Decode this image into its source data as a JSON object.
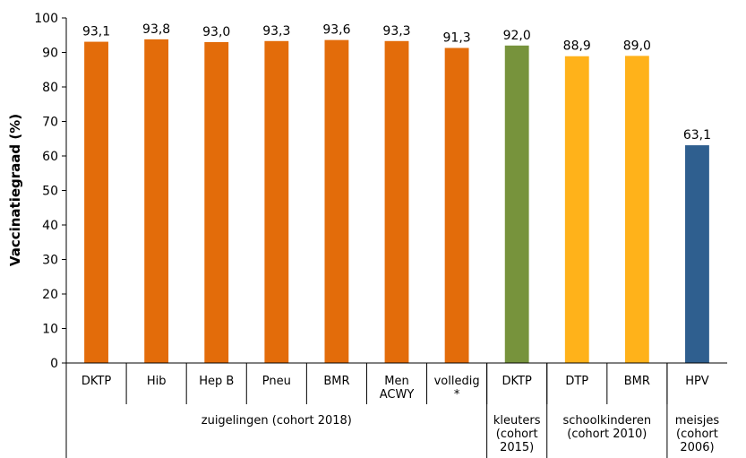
{
  "chart_data": {
    "type": "bar",
    "ylabel": "Vaccinatiegraad (%)",
    "ylim": [
      0,
      100
    ],
    "yticks": [
      "0",
      "10",
      "20",
      "30",
      "40",
      "50",
      "60",
      "70",
      "80",
      "90",
      "100"
    ],
    "grid": false,
    "colors": {
      "zuigelingen": "#E36C0A",
      "kleuters": "#77933C",
      "schoolkinderen": "#FFB21A",
      "meisjes": "#2F5F8F"
    },
    "categories": [
      {
        "lines": [
          "DKTP"
        ],
        "value": 93.1,
        "label": "93,1",
        "group": "zuigelingen"
      },
      {
        "lines": [
          "Hib"
        ],
        "value": 93.8,
        "label": "93,8",
        "group": "zuigelingen"
      },
      {
        "lines": [
          "Hep B"
        ],
        "value": 93.0,
        "label": "93,0",
        "group": "zuigelingen"
      },
      {
        "lines": [
          "Pneu"
        ],
        "value": 93.3,
        "label": "93,3",
        "group": "zuigelingen"
      },
      {
        "lines": [
          "BMR"
        ],
        "value": 93.6,
        "label": "93,6",
        "group": "zuigelingen"
      },
      {
        "lines": [
          "Men",
          "ACWY"
        ],
        "value": 93.3,
        "label": "93,3",
        "group": "zuigelingen"
      },
      {
        "lines": [
          "volledig",
          "*"
        ],
        "value": 91.3,
        "label": "91,3",
        "group": "zuigelingen"
      },
      {
        "lines": [
          "DKTP"
        ],
        "value": 92.0,
        "label": "92,0",
        "group": "kleuters"
      },
      {
        "lines": [
          "DTP"
        ],
        "value": 88.9,
        "label": "88,9",
        "group": "schoolkinderen"
      },
      {
        "lines": [
          "BMR"
        ],
        "value": 89.0,
        "label": "89,0",
        "group": "schoolkinderen"
      },
      {
        "lines": [
          "HPV"
        ],
        "value": 63.1,
        "label": "63,1",
        "group": "meisjes"
      }
    ],
    "groups": [
      {
        "key": "zuigelingen",
        "lines": [
          "zuigelingen (cohort 2018)"
        ]
      },
      {
        "key": "kleuters",
        "lines": [
          "kleuters",
          "(cohort",
          "2015)"
        ]
      },
      {
        "key": "schoolkinderen",
        "lines": [
          "schoolkinderen",
          "(cohort 2010)"
        ]
      },
      {
        "key": "meisjes",
        "lines": [
          "meisjes",
          "(cohort",
          "2006)"
        ]
      }
    ]
  }
}
